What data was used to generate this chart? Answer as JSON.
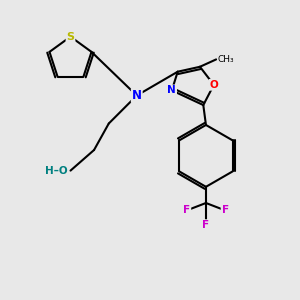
{
  "bg_color": "#e8e8e8",
  "atom_colors": {
    "C": "#000000",
    "N": "#0000ff",
    "O": "#ff0000",
    "S": "#b8b800",
    "F": "#cc00cc",
    "H": "#008080"
  },
  "bond_color": "#000000",
  "bond_width": 1.5,
  "dbo": 0.06
}
